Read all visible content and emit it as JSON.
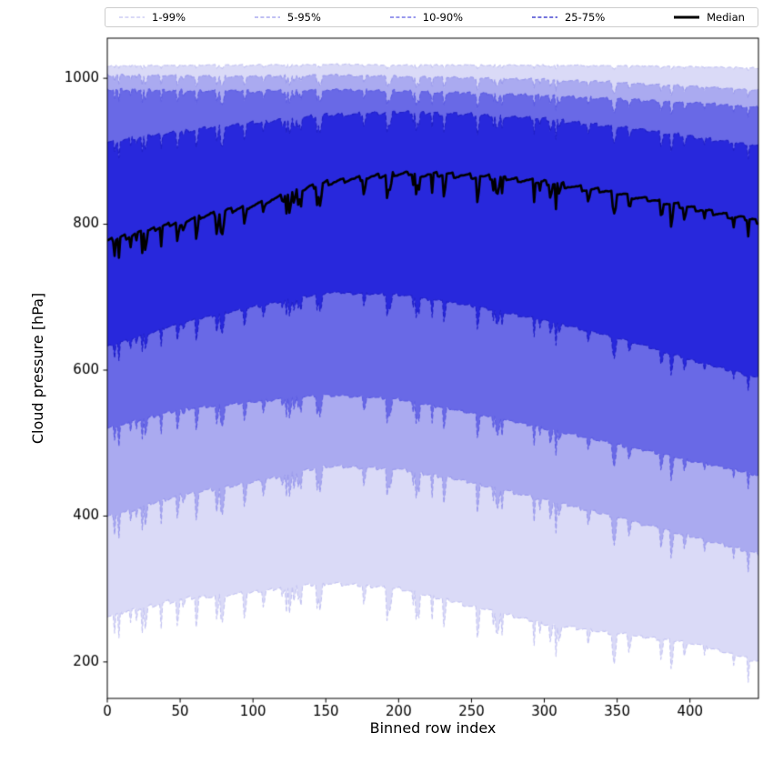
{
  "chart_data": {
    "type": "area",
    "subtype": "percentile-fan-chart",
    "title": "",
    "xlabel": "Binned row index",
    "ylabel": "Cloud pressure [hPa]",
    "xlim": [
      0,
      447
    ],
    "ylim": [
      150,
      1055
    ],
    "xticks": [
      0,
      50,
      100,
      150,
      200,
      250,
      300,
      350,
      400
    ],
    "yticks": [
      200,
      400,
      600,
      800,
      1000
    ],
    "grid": false,
    "legend_position": "top-outside-horizontal",
    "legend": [
      {
        "label": "1-99%",
        "color": "#c4c4f2",
        "dashed": true
      },
      {
        "label": "5-95%",
        "color": "#9a9aec",
        "dashed": true
      },
      {
        "label": "10-90%",
        "color": "#5c5ce2",
        "dashed": true
      },
      {
        "label": "25-75%",
        "color": "#2020c8",
        "dashed": true
      },
      {
        "label": "Median",
        "color": "#000000",
        "dashed": false
      }
    ],
    "band_fill_colors": [
      "#dadaf7",
      "#aaaaf0",
      "#6969e6",
      "#2828dc"
    ],
    "control_x": [
      0,
      50,
      100,
      150,
      200,
      250,
      300,
      350,
      400,
      447
    ],
    "series": {
      "p99": [
        1017,
        1018,
        1018,
        1019,
        1018,
        1018,
        1018,
        1017,
        1016,
        1014
      ],
      "p95": [
        1004,
        1003,
        1002,
        1004,
        1002,
        1000,
        998,
        994,
        989,
        983
      ],
      "p90": [
        984,
        983,
        982,
        984,
        982,
        979,
        976,
        971,
        966,
        960
      ],
      "p75": [
        912,
        927,
        938,
        949,
        953,
        950,
        944,
        933,
        920,
        906
      ],
      "median": [
        776,
        802,
        826,
        856,
        869,
        866,
        857,
        842,
        822,
        803
      ],
      "p25": [
        632,
        664,
        686,
        706,
        703,
        688,
        668,
        644,
        614,
        589
      ],
      "p10": [
        520,
        546,
        556,
        566,
        560,
        541,
        520,
        498,
        476,
        456
      ],
      "p05": [
        398,
        428,
        446,
        468,
        464,
        446,
        422,
        398,
        372,
        348
      ],
      "p01": [
        262,
        286,
        295,
        308,
        300,
        276,
        252,
        238,
        226,
        200
      ]
    },
    "bands": [
      {
        "lower": "p01",
        "upper": "p99",
        "label": "1-99%"
      },
      {
        "lower": "p05",
        "upper": "p95",
        "label": "5-95%"
      },
      {
        "lower": "p10",
        "upper": "p90",
        "label": "10-90%"
      },
      {
        "lower": "p25",
        "upper": "p75",
        "label": "25-75%"
      }
    ]
  }
}
